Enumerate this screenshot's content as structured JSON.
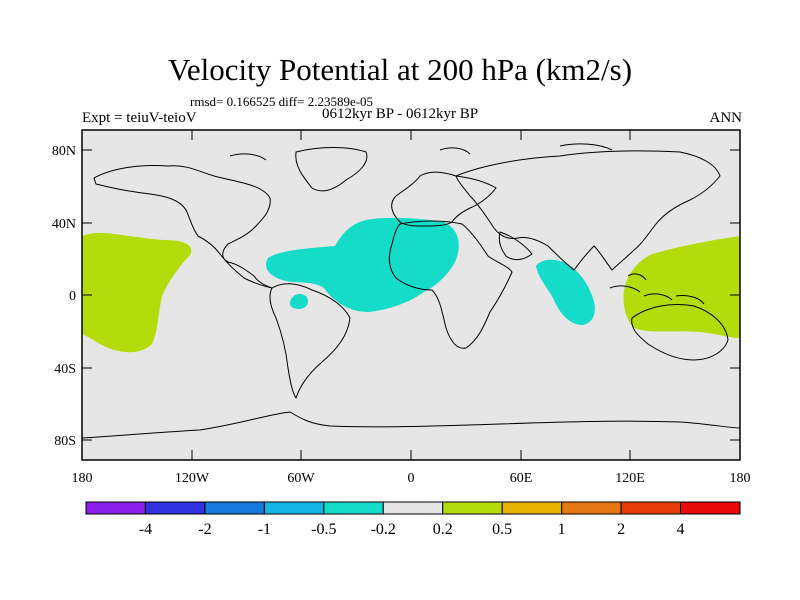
{
  "header": {
    "title": "Velocity Potential at 200 hPa (km2/s)",
    "stats": "rmsd= 0.166525 diff= 2.23589e-05",
    "experiment": "Expt = teiuV-teioV",
    "period": "0612kyr BP - 0612kyr BP",
    "season": "ANN"
  },
  "axes": {
    "lat_labels": [
      "80N",
      "40N",
      "0",
      "40S",
      "80S"
    ],
    "lon_labels": [
      "180",
      "120W",
      "60W",
      "0",
      "60E",
      "120E",
      "180"
    ]
  },
  "colorbar": {
    "colors": [
      "#8b1ee8",
      "#3232e0",
      "#1478dc",
      "#14b4e6",
      "#14dcc8",
      "#e6e6e6",
      "#b4dc0a",
      "#e6b400",
      "#e67814",
      "#e63c0a",
      "#e60a0a"
    ],
    "labels": [
      "-4",
      "-2",
      "-1",
      "-0.5",
      "-0.2",
      "0.2",
      "0.5",
      "1",
      "2",
      "4"
    ]
  },
  "colors": {
    "background": "#e6e6e6",
    "positive_fill": "#b4dc0a",
    "negative_fill": "#14dcc8",
    "coast": "#000000"
  },
  "fields": {
    "positive_regions": [
      "central-pacific-west",
      "maritime-continent-west-pacific"
    ],
    "negative_regions": [
      "caribbean-atlantic-africa",
      "indian-ocean",
      "amazon-spot"
    ]
  }
}
